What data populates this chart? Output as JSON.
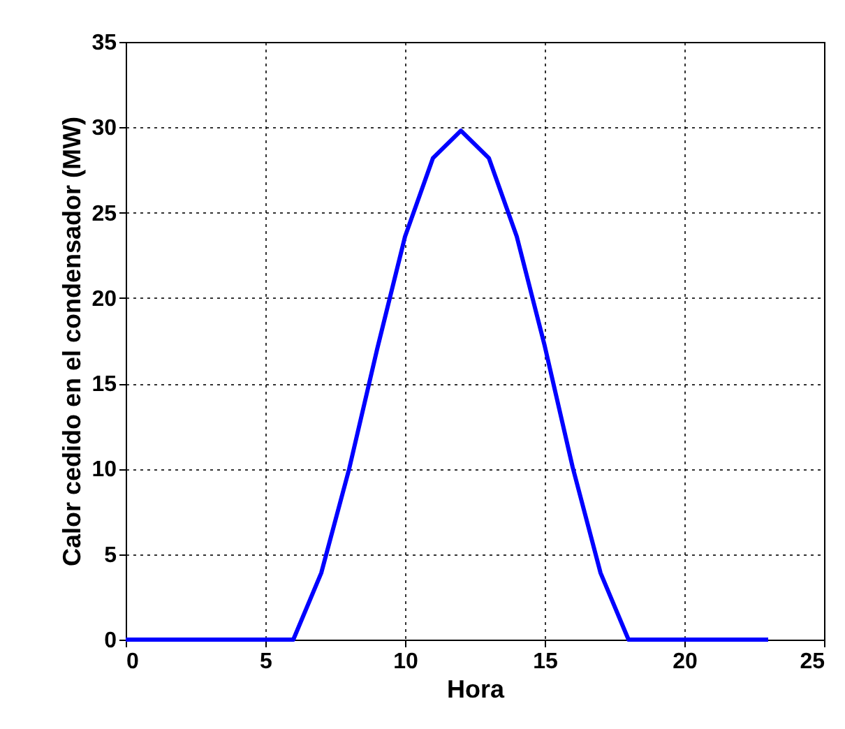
{
  "chart_data": {
    "type": "line",
    "xlabel": "Hora",
    "ylabel": "Calor cedido en el condensador (MW)",
    "x": [
      0,
      1,
      2,
      3,
      4,
      5,
      6,
      7,
      8,
      9,
      10,
      11,
      12,
      13,
      14,
      15,
      16,
      17,
      18,
      19,
      20,
      21,
      22,
      23
    ],
    "series": [
      {
        "color": "#0000ff",
        "values": [
          0,
          0,
          0,
          0,
          0,
          0,
          0,
          3.9,
          10,
          17,
          23.6,
          28.2,
          29.8,
          28.2,
          23.6,
          17.2,
          10.1,
          3.9,
          0,
          0,
          0,
          0,
          0,
          0
        ]
      }
    ],
    "xlim": [
      0,
      25
    ],
    "ylim": [
      0,
      35
    ],
    "xticks": [
      0,
      5,
      10,
      15,
      20,
      25
    ],
    "yticks": [
      0,
      5,
      10,
      15,
      20,
      25,
      30,
      35
    ],
    "grid": true,
    "line_style": "solid"
  }
}
